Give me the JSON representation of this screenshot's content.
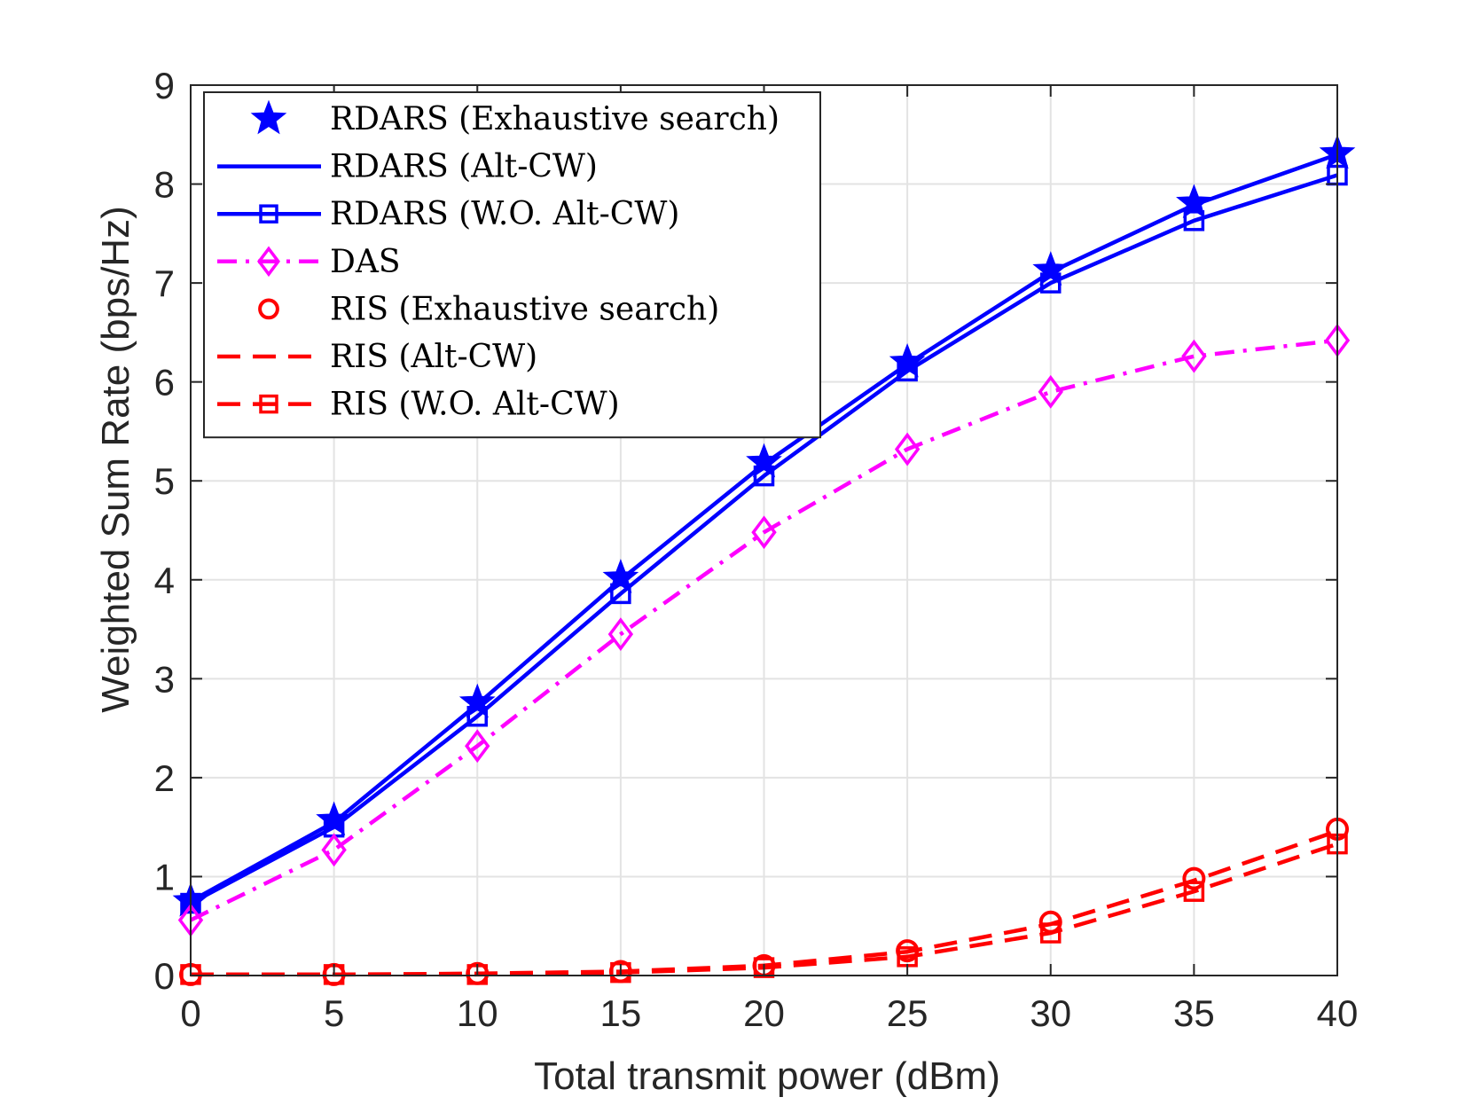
{
  "chart_data": {
    "type": "line",
    "title": "",
    "xlabel": "Total transmit power (dBm)",
    "ylabel": "Weighted Sum Rate (bps/Hz)",
    "xlim": [
      0,
      40
    ],
    "ylim": [
      0,
      9
    ],
    "xticks": [
      "0",
      "5",
      "10",
      "15",
      "20",
      "25",
      "30",
      "35",
      "40"
    ],
    "yticks": [
      "0",
      "1",
      "2",
      "3",
      "4",
      "5",
      "6",
      "7",
      "8",
      "9"
    ],
    "grid": true,
    "legend_position": "top-left",
    "x": [
      0,
      5,
      10,
      15,
      20,
      25,
      30,
      35,
      40
    ],
    "series": [
      {
        "name": "RDARS (Exhaustive search)",
        "color": "#0000ff",
        "line": "none",
        "marker": "star",
        "values": [
          0.75,
          1.57,
          2.76,
          4.02,
          5.19,
          6.2,
          7.13,
          7.81,
          8.31
        ]
      },
      {
        "name": "RDARS (Alt-CW)",
        "color": "#0000ff",
        "line": "solid",
        "marker": "none",
        "values": [
          0.75,
          1.55,
          2.74,
          4.0,
          5.17,
          6.18,
          7.11,
          7.79,
          8.3
        ]
      },
      {
        "name": "RDARS (W.O. Alt-CW)",
        "color": "#0000ff",
        "line": "solid",
        "marker": "square",
        "values": [
          0.73,
          1.5,
          2.62,
          3.86,
          5.05,
          6.11,
          7.0,
          7.63,
          8.09
        ]
      },
      {
        "name": "DAS",
        "color": "#ff00ff",
        "line": "dashdot",
        "marker": "diamond",
        "values": [
          0.56,
          1.27,
          2.32,
          3.45,
          4.48,
          5.32,
          5.9,
          6.26,
          6.42
        ]
      },
      {
        "name": "RIS (Exhaustive search)",
        "color": "#ff0000",
        "line": "none",
        "marker": "circle",
        "values": [
          0.01,
          0.01,
          0.02,
          0.04,
          0.1,
          0.25,
          0.54,
          0.98,
          1.48
        ]
      },
      {
        "name": "RIS (Alt-CW)",
        "color": "#ff0000",
        "line": "dashed",
        "marker": "none",
        "values": [
          0.01,
          0.01,
          0.02,
          0.04,
          0.1,
          0.24,
          0.52,
          0.96,
          1.46
        ]
      },
      {
        "name": "RIS (W.O. Alt-CW)",
        "color": "#ff0000",
        "line": "dashed",
        "marker": "square",
        "values": [
          0.01,
          0.01,
          0.01,
          0.03,
          0.08,
          0.19,
          0.43,
          0.85,
          1.33
        ]
      }
    ]
  }
}
